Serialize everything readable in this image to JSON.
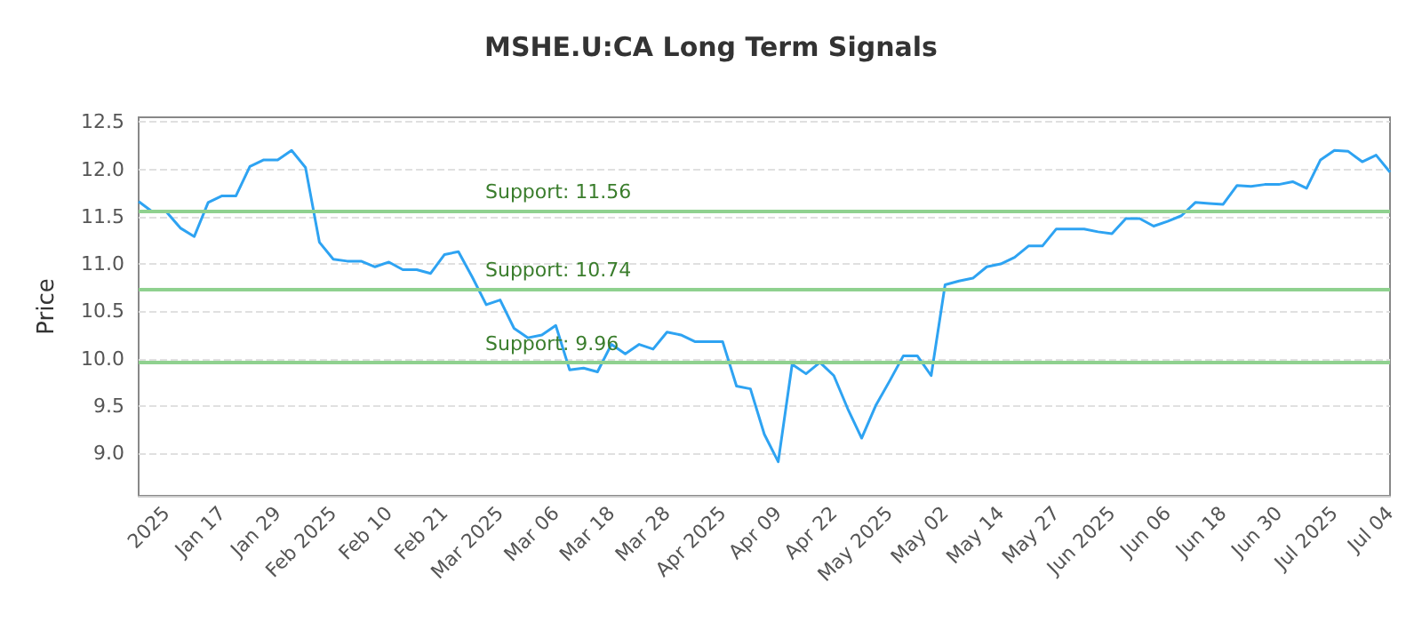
{
  "chart_data": {
    "type": "line",
    "title": "MSHE.U:CA Long Term Signals",
    "ylabel": "Price",
    "categories": [
      null,
      null,
      "2025",
      null,
      null,
      null,
      "Jan 17",
      null,
      null,
      null,
      "Jan 29",
      null,
      null,
      null,
      "Feb 2025",
      null,
      null,
      null,
      "Feb 10",
      null,
      null,
      null,
      "Feb 21",
      null,
      null,
      null,
      "Mar 2025",
      null,
      null,
      null,
      "Mar 06",
      null,
      null,
      null,
      "Mar 18",
      null,
      null,
      null,
      "Mar 28",
      null,
      null,
      null,
      "Apr 2025",
      null,
      null,
      null,
      "Apr 09",
      null,
      null,
      null,
      "Apr 22",
      null,
      null,
      null,
      "May 2025",
      null,
      null,
      null,
      "May 02",
      null,
      null,
      null,
      "May 14",
      null,
      null,
      null,
      "May 27",
      null,
      null,
      null,
      "Jun 2025",
      null,
      null,
      null,
      "Jun 06",
      null,
      null,
      null,
      "Jun 18",
      null,
      null,
      null,
      "Jun 30",
      null,
      null,
      null,
      "Jul 2025",
      null,
      null,
      null,
      "Jul 04"
    ],
    "series": [
      {
        "color": "#2ea3f2",
        "values": [
          11.66,
          11.55,
          11.55,
          11.38,
          11.29,
          11.65,
          11.72,
          11.72,
          12.03,
          12.1,
          12.1,
          12.2,
          12.02,
          11.23,
          11.05,
          11.03,
          11.03,
          10.97,
          11.02,
          10.94,
          10.94,
          10.9,
          11.1,
          11.13,
          10.86,
          10.57,
          10.62,
          10.32,
          10.22,
          10.25,
          10.35,
          9.88,
          9.9,
          9.86,
          10.15,
          10.05,
          10.15,
          10.1,
          10.28,
          10.25,
          10.18,
          10.18,
          10.18,
          9.71,
          9.68,
          9.2,
          8.91,
          9.94,
          9.84,
          9.96,
          9.82,
          9.47,
          9.16,
          9.5,
          9.76,
          10.03,
          10.03,
          9.82,
          10.78,
          10.82,
          10.85,
          10.97,
          11.0,
          11.07,
          11.19,
          11.19,
          11.37,
          11.37,
          11.37,
          11.34,
          11.32,
          11.48,
          11.48,
          11.4,
          11.45,
          11.51,
          11.65,
          11.64,
          11.63,
          11.83,
          11.82,
          11.84,
          11.84,
          11.87,
          11.8,
          12.1,
          12.2,
          12.19,
          12.08,
          12.15,
          11.97
        ]
      }
    ],
    "ylim": [
      8.55,
      12.55
    ],
    "yticks": [
      {
        "value": 9,
        "label": "9.0"
      },
      9.5,
      {
        "value": 10,
        "label": "10.0"
      },
      10.5,
      {
        "value": 11,
        "label": "11.0"
      },
      11.5,
      {
        "value": 12,
        "label": "12.0"
      },
      12.5
    ],
    "ref_lines": [
      {
        "axis": "y",
        "value": 11.56,
        "label": "Support: 11.56",
        "color": "#8fd18f"
      },
      {
        "axis": "y",
        "value": 10.74,
        "label": "Support: 10.74",
        "color": "#8fd18f"
      },
      {
        "axis": "y",
        "value": 9.96,
        "label": "Support: 9.96",
        "color": "#8fd18f"
      }
    ],
    "grid": "y",
    "marker": "none",
    "line_style": "solid"
  }
}
